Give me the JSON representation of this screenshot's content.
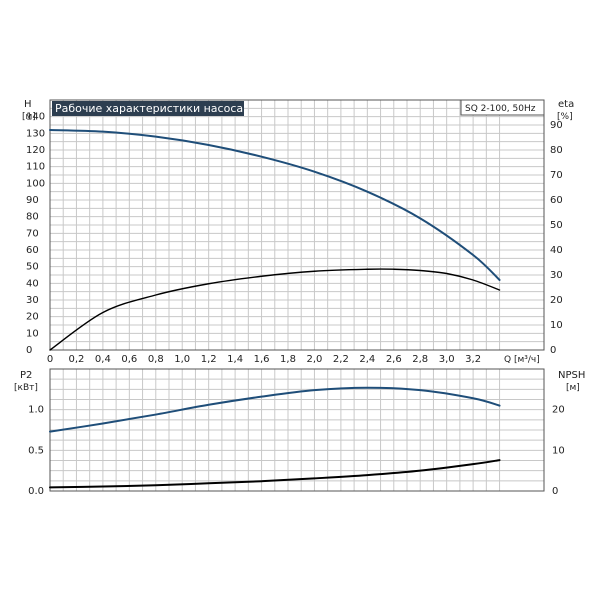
{
  "chart_data": [
    {
      "type": "line",
      "title": "Рабочие характеристики насоса",
      "model_label": "SQ 2-100, 50Hz",
      "xlabel": "Q [м³/ч]",
      "ylabel_left_name": "H",
      "ylabel_left_unit": "[м]",
      "ylabel_right_name": "eta",
      "ylabel_right_unit": "[%]",
      "xlim": [
        0,
        3.6
      ],
      "ylim_left": [
        0,
        150
      ],
      "ylim_right": [
        0,
        100
      ],
      "x_ticks": [
        "0",
        "0,2",
        "0,4",
        "0,6",
        "0,8",
        "1,0",
        "1,2",
        "1,4",
        "1,6",
        "1,8",
        "2,0",
        "2,2",
        "2,4",
        "2,6",
        "2,8",
        "3,0",
        "3,2"
      ],
      "y_left_ticks": [
        "0",
        "10",
        "20",
        "30",
        "40",
        "50",
        "60",
        "70",
        "80",
        "90",
        "100",
        "110",
        "120",
        "130",
        "140"
      ],
      "y_right_ticks": [
        "0",
        "10",
        "20",
        "30",
        "40",
        "50",
        "60",
        "70",
        "80",
        "90"
      ],
      "grid": true,
      "series": [
        {
          "axis": "left",
          "color": "#1f4e79",
          "x": [
            0,
            0.4,
            0.8,
            1.2,
            1.6,
            2.0,
            2.4,
            2.8,
            3.2,
            3.4
          ],
          "values": [
            132,
            131,
            128,
            123,
            116,
            107,
            95,
            79,
            57,
            42
          ]
        },
        {
          "axis": "right",
          "color": "#000000",
          "x": [
            0,
            0.4,
            0.8,
            1.2,
            1.6,
            2.0,
            2.4,
            2.6,
            2.8,
            3.0,
            3.2,
            3.4
          ],
          "values": [
            0,
            15,
            22,
            26.5,
            29.5,
            31.5,
            32.3,
            32.3,
            31.8,
            30.6,
            28,
            24
          ]
        }
      ]
    },
    {
      "type": "line",
      "ylabel_left_name": "P2",
      "ylabel_left_unit": "[кВт]",
      "ylabel_right_name": "NPSH",
      "ylabel_right_unit": "[м]",
      "xlim": [
        0,
        3.6
      ],
      "ylim_left": [
        0,
        1.5
      ],
      "ylim_right": [
        0,
        30
      ],
      "y_left_ticks": [
        "0.0",
        "0.5",
        "1.0"
      ],
      "y_right_ticks": [
        "0",
        "10",
        "20"
      ],
      "grid": true,
      "series": [
        {
          "axis": "left",
          "color": "#1f4e79",
          "x": [
            0,
            0.4,
            0.8,
            1.2,
            1.6,
            2.0,
            2.4,
            2.8,
            3.2,
            3.4
          ],
          "values": [
            0.73,
            0.83,
            0.94,
            1.06,
            1.16,
            1.24,
            1.27,
            1.24,
            1.14,
            1.05
          ]
        },
        {
          "axis": "right",
          "color": "#000000",
          "x": [
            0,
            0.4,
            0.8,
            1.2,
            1.6,
            2.0,
            2.4,
            2.8,
            3.2,
            3.4
          ],
          "values": [
            0.9,
            1.1,
            1.4,
            1.9,
            2.4,
            3.1,
            3.9,
            5.0,
            6.6,
            7.6
          ]
        }
      ]
    }
  ]
}
